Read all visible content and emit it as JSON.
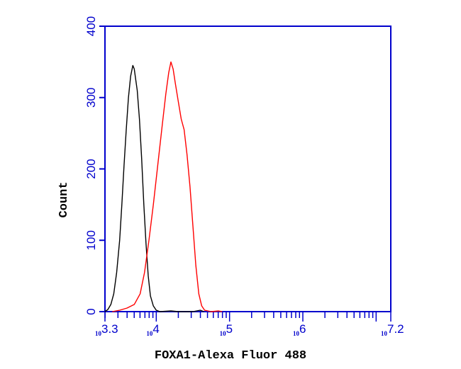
{
  "chart_data": {
    "type": "line",
    "title": "",
    "xlabel": "FOXA1-Alexa Fluor 488",
    "ylabel": "Count",
    "xscale": "log",
    "xlim_exp": [
      3.3,
      7.2
    ],
    "ylim": [
      0,
      400
    ],
    "x_ticks": [
      {
        "base": "10",
        "exp": "3.3",
        "value": 3.3
      },
      {
        "base": "10",
        "exp": "4",
        "value": 4
      },
      {
        "base": "10",
        "exp": "5",
        "value": 5
      },
      {
        "base": "10",
        "exp": "6",
        "value": 6
      },
      {
        "base": "10",
        "exp": "7.2",
        "value": 7.2
      }
    ],
    "y_ticks": [
      {
        "label": "0",
        "value": 0
      },
      {
        "label": "100",
        "value": 100
      },
      {
        "label": "200",
        "value": 200
      },
      {
        "label": "300",
        "value": 300
      },
      {
        "label": "400",
        "value": 400
      }
    ],
    "grid": false,
    "colors": {
      "axis": "#0000cc",
      "control": "#000000",
      "sample": "#ff0000"
    },
    "series": [
      {
        "color": "#000000",
        "points": [
          [
            3.3,
            0
          ],
          [
            3.34,
            3
          ],
          [
            3.38,
            10
          ],
          [
            3.42,
            25
          ],
          [
            3.46,
            55
          ],
          [
            3.5,
            100
          ],
          [
            3.53,
            150
          ],
          [
            3.56,
            205
          ],
          [
            3.59,
            255
          ],
          [
            3.62,
            300
          ],
          [
            3.65,
            330
          ],
          [
            3.68,
            345
          ],
          [
            3.7,
            340
          ],
          [
            3.72,
            325
          ],
          [
            3.74,
            310
          ],
          [
            3.77,
            270
          ],
          [
            3.8,
            215
          ],
          [
            3.83,
            150
          ],
          [
            3.86,
            95
          ],
          [
            3.89,
            50
          ],
          [
            3.92,
            22
          ],
          [
            3.96,
            8
          ],
          [
            4.0,
            2
          ],
          [
            4.05,
            0
          ],
          [
            4.2,
            1
          ],
          [
            4.3,
            0
          ],
          [
            4.5,
            0
          ],
          [
            4.6,
            2
          ],
          [
            4.65,
            0
          ]
        ]
      },
      {
        "color": "#ff0000",
        "points": [
          [
            3.4,
            0
          ],
          [
            3.5,
            2
          ],
          [
            3.6,
            5
          ],
          [
            3.7,
            10
          ],
          [
            3.78,
            25
          ],
          [
            3.84,
            55
          ],
          [
            3.9,
            100
          ],
          [
            3.96,
            150
          ],
          [
            4.02,
            205
          ],
          [
            4.08,
            260
          ],
          [
            4.13,
            305
          ],
          [
            4.17,
            335
          ],
          [
            4.2,
            350
          ],
          [
            4.23,
            340
          ],
          [
            4.26,
            320
          ],
          [
            4.3,
            295
          ],
          [
            4.34,
            270
          ],
          [
            4.38,
            255
          ],
          [
            4.42,
            220
          ],
          [
            4.46,
            175
          ],
          [
            4.5,
            120
          ],
          [
            4.54,
            65
          ],
          [
            4.58,
            25
          ],
          [
            4.62,
            8
          ],
          [
            4.66,
            2
          ],
          [
            4.75,
            0
          ],
          [
            4.85,
            1
          ],
          [
            4.9,
            0
          ]
        ]
      }
    ]
  }
}
